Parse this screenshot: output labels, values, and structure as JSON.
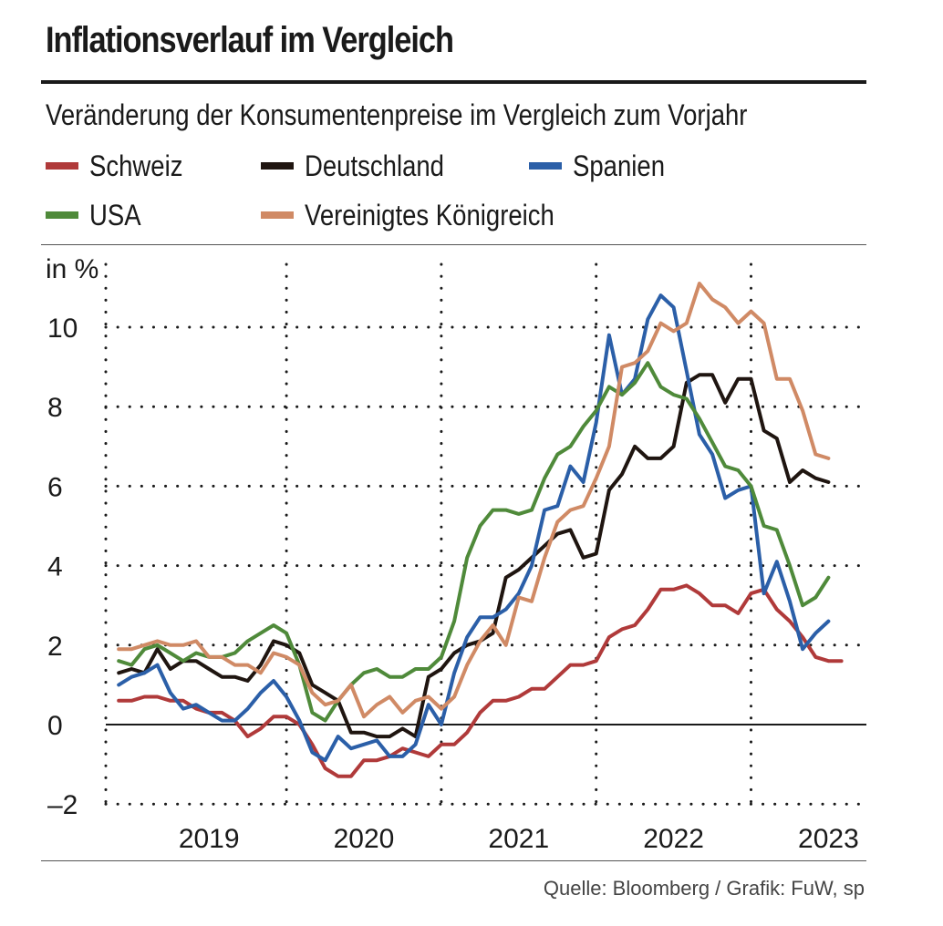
{
  "title": "Inflationsverlauf im Vergleich",
  "subtitle": "Veränderung der Konsumentenpreise im Vergleich zum Vorjahr",
  "source": "Quelle: Bloomberg / Grafik: FuW, sp",
  "chart_data": {
    "type": "line",
    "title": "Inflationsverlauf im Vergleich",
    "subtitle": "Veränderung der Konsumentenpreise im Vergleich zum Vorjahr",
    "ylabel": "in %",
    "xlabel": "",
    "ylim": [
      -2,
      11
    ],
    "yticks": [
      -2,
      0,
      2,
      4,
      6,
      8,
      10
    ],
    "ytick_labels": [
      "–2",
      "0",
      "2",
      "4",
      "6",
      "8",
      "10"
    ],
    "xlim": [
      "2018-11",
      "2023-05"
    ],
    "xtick_labels": [
      "2019",
      "2020",
      "2021",
      "2022",
      "2023"
    ],
    "grid": true,
    "legend": "top",
    "x_start": "2018-12",
    "x_step": "month",
    "series": [
      {
        "name": "Schweiz",
        "color": "#b03a3a",
        "values": [
          0.6,
          0.6,
          0.7,
          0.7,
          0.6,
          0.6,
          0.4,
          0.3,
          0.3,
          0.1,
          -0.3,
          -0.1,
          0.2,
          0.2,
          0,
          -0.5,
          -1.1,
          -1.3,
          -1.3,
          -0.9,
          -0.9,
          -0.8,
          -0.6,
          -0.7,
          -0.8,
          -0.5,
          -0.5,
          -0.2,
          0.3,
          0.6,
          0.6,
          0.7,
          0.9,
          0.9,
          1.2,
          1.5,
          1.5,
          1.6,
          2.2,
          2.4,
          2.5,
          2.9,
          3.4,
          3.4,
          3.5,
          3.3,
          3.0,
          3.0,
          2.8,
          3.3,
          3.4,
          2.9,
          2.6,
          2.2,
          1.7,
          1.6,
          1.6
        ]
      },
      {
        "name": "Deutschland",
        "color": "#1f1510",
        "values": [
          1.3,
          1.4,
          1.3,
          1.9,
          1.4,
          1.6,
          1.6,
          1.4,
          1.2,
          1.2,
          1.1,
          1.5,
          2.1,
          2.0,
          1.8,
          1.0,
          0.8,
          0.6,
          -0.2,
          -0.2,
          -0.3,
          -0.3,
          -0.1,
          -0.3,
          1.2,
          1.4,
          1.8,
          2.0,
          2.1,
          2.3,
          3.7,
          3.9,
          4.2,
          4.5,
          4.8,
          4.9,
          4.2,
          4.3,
          5.9,
          6.3,
          7.0,
          6.7,
          6.7,
          7.0,
          8.6,
          8.8,
          8.8,
          8.1,
          8.7,
          8.7,
          7.4,
          7.2,
          6.1,
          6.4,
          6.2,
          6.1
        ]
      },
      {
        "name": "Spanien",
        "color": "#2b5fa8",
        "values": [
          1.0,
          1.2,
          1.3,
          1.5,
          0.8,
          0.4,
          0.5,
          0.3,
          0.1,
          0.1,
          0.4,
          0.8,
          1.1,
          0.7,
          0.1,
          -0.7,
          -0.9,
          -0.3,
          -0.6,
          -0.5,
          -0.4,
          -0.8,
          -0.8,
          -0.5,
          0.5,
          0.0,
          1.3,
          2.2,
          2.7,
          2.7,
          2.9,
          3.3,
          4.0,
          5.4,
          5.5,
          6.5,
          6.1,
          7.6,
          9.8,
          8.3,
          8.7,
          10.2,
          10.8,
          10.5,
          8.9,
          7.3,
          6.8,
          5.7,
          5.9,
          6.0,
          3.3,
          4.1,
          3.1,
          1.9,
          2.3,
          2.6
        ]
      },
      {
        "name": "USA",
        "color": "#4f8a3a",
        "values": [
          1.6,
          1.5,
          1.9,
          2.0,
          1.8,
          1.6,
          1.8,
          1.7,
          1.7,
          1.8,
          2.1,
          2.3,
          2.5,
          2.3,
          1.5,
          0.3,
          0.1,
          0.6,
          1.0,
          1.3,
          1.4,
          1.2,
          1.2,
          1.4,
          1.4,
          1.7,
          2.6,
          4.2,
          5.0,
          5.4,
          5.4,
          5.3,
          5.4,
          6.2,
          6.8,
          7.0,
          7.5,
          7.9,
          8.5,
          8.3,
          8.6,
          9.1,
          8.5,
          8.3,
          8.2,
          7.7,
          7.1,
          6.5,
          6.4,
          6.0,
          5.0,
          4.9,
          4.0,
          3.0,
          3.2,
          3.7
        ]
      },
      {
        "name": "Vereinigtes Königreich",
        "color": "#d08a65",
        "values": [
          1.9,
          1.9,
          2.0,
          2.1,
          2.0,
          2.0,
          2.1,
          1.7,
          1.7,
          1.5,
          1.5,
          1.3,
          1.8,
          1.7,
          1.5,
          0.8,
          0.5,
          0.6,
          1.0,
          0.2,
          0.5,
          0.7,
          0.3,
          0.6,
          0.7,
          0.4,
          0.7,
          1.5,
          2.1,
          2.5,
          2.0,
          3.2,
          3.1,
          4.2,
          5.1,
          5.4,
          5.5,
          6.2,
          7.0,
          9.0,
          9.1,
          9.4,
          10.1,
          9.9,
          10.1,
          11.1,
          10.7,
          10.5,
          10.1,
          10.4,
          10.1,
          8.7,
          8.7,
          7.9,
          6.8,
          6.7
        ]
      }
    ]
  }
}
